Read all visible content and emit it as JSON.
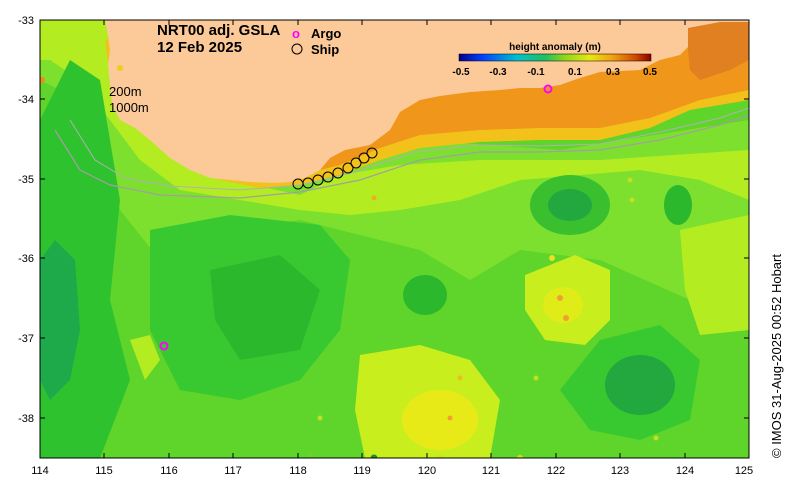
{
  "title": {
    "line1": "NRT00 adj. GSLA",
    "line2": "12 Feb 2025"
  },
  "legend": {
    "argo_symbol": "o",
    "argo_label": "Argo",
    "ship_label": "Ship"
  },
  "colorbar": {
    "title": "height anomaly (m)",
    "ticks": [
      "-0.5",
      "-0.3",
      "-0.1",
      "0.1",
      "0.3",
      "0.5"
    ]
  },
  "isobaths": {
    "label_200": "200m",
    "label_1000": "1000m"
  },
  "axes": {
    "x_ticks": [
      "114",
      "115",
      "116",
      "117",
      "118",
      "119",
      "120",
      "121",
      "122",
      "123",
      "124",
      "125"
    ],
    "y_ticks": [
      "-33",
      "-34",
      "-35",
      "-36",
      "-37",
      "-38"
    ]
  },
  "credit": "© IMOS 31-Aug-2025 00:52 Hobart",
  "colors": {
    "land": "#fcc998",
    "sea_base": "#7ee02e",
    "argo": "#ff00ff"
  }
}
